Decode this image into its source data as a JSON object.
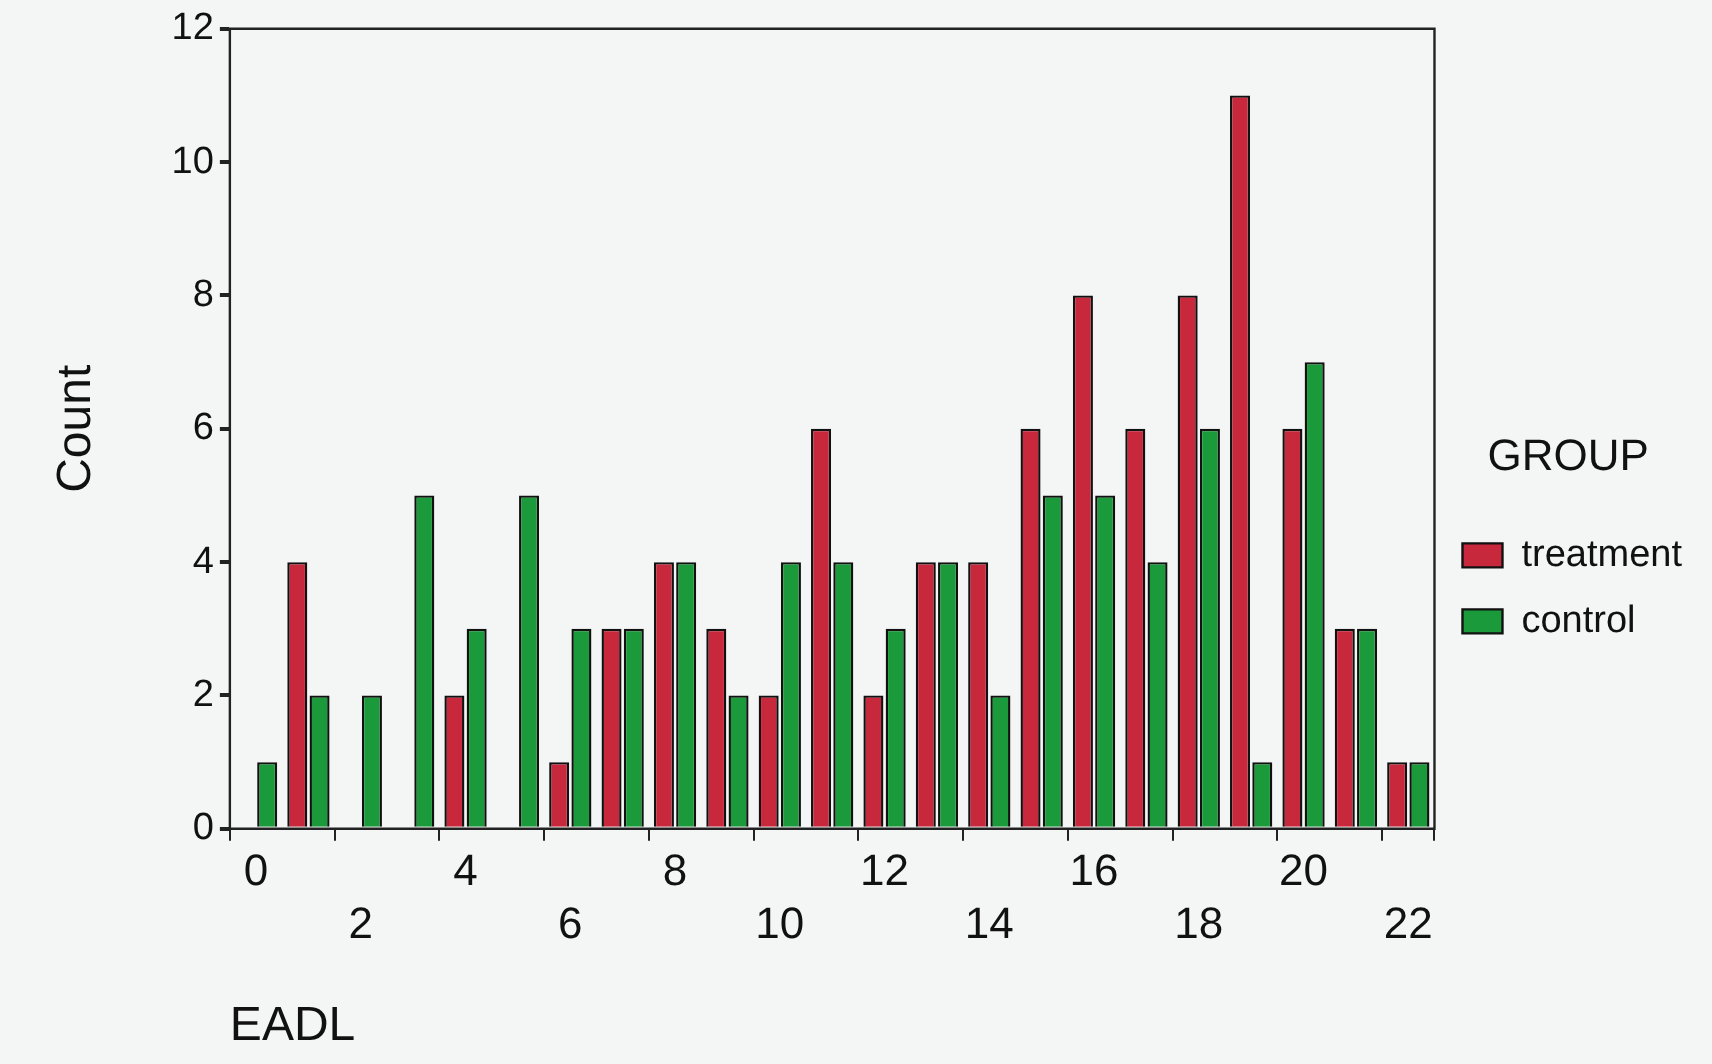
{
  "chart_data": {
    "type": "bar",
    "xlabel": "EADL",
    "ylabel": "Count",
    "legend_title": "GROUP",
    "categories": [
      "0",
      null,
      "2",
      null,
      "4",
      null,
      "6",
      null,
      "8",
      null,
      "10",
      null,
      "12",
      null,
      "14",
      null,
      "16",
      null,
      "18",
      null,
      "20",
      null,
      "22"
    ],
    "series": [
      {
        "name": "treatment",
        "color": "#c8283c",
        "values": [
          0,
          4,
          0,
          0,
          2,
          0,
          1,
          3,
          4,
          3,
          2,
          6,
          2,
          4,
          4,
          6,
          8,
          6,
          8,
          11,
          6,
          3,
          1
        ]
      },
      {
        "name": "control",
        "color": "#1a9a3a",
        "values": [
          1,
          2,
          2,
          5,
          3,
          5,
          3,
          3,
          4,
          2,
          4,
          4,
          3,
          4,
          2,
          5,
          5,
          4,
          6,
          1,
          7,
          3,
          1
        ]
      }
    ],
    "ylim": [
      0,
      12
    ],
    "yticks": [
      0,
      2,
      4,
      6,
      8,
      10,
      12
    ],
    "grid": false,
    "legend": "right"
  }
}
